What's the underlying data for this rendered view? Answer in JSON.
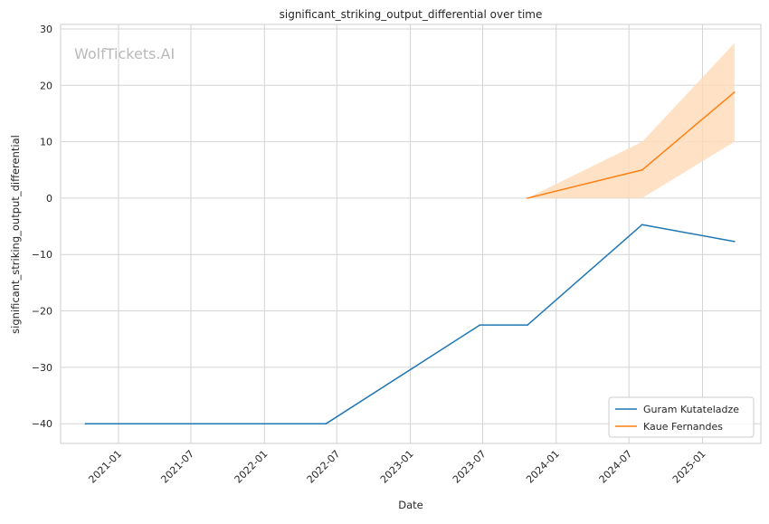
{
  "chart_data": {
    "type": "line",
    "title": "significant_striking_output_differential over time",
    "xlabel": "Date",
    "ylabel": "significant_striking_output_differential",
    "watermark": "WolfTickets.AI",
    "x_ticks": [
      "2021-01",
      "2021-07",
      "2022-01",
      "2022-07",
      "2023-01",
      "2023-07",
      "2024-01",
      "2024-07",
      "2025-01"
    ],
    "y_ticks": [
      30,
      20,
      10,
      0,
      -10,
      -20,
      -30,
      -40
    ],
    "y_tick_labels": [
      "30",
      "20",
      "10",
      "0",
      "−10",
      "−20",
      "−30",
      "−40"
    ],
    "xlim": [
      "2020-08-09",
      "2025-05-27"
    ],
    "ylim": [
      -43.5,
      30.8
    ],
    "grid": true,
    "legend_position": "lower-right",
    "series": [
      {
        "name": "Guram Kutateladze",
        "color": "#1f77b4",
        "x": [
          "2020-10-10",
          "2022-06-04",
          "2023-06-24",
          "2023-10-21",
          "2024-08-03",
          "2025-03-22"
        ],
        "y": [
          -40,
          -40,
          -22.5,
          -22.5,
          -4.7,
          -7.7
        ]
      },
      {
        "name": "Kaue Fernandes",
        "color": "#ff7f0e",
        "x": [
          "2023-10-21",
          "2024-08-03",
          "2025-03-22"
        ],
        "y": [
          0,
          5,
          18.8
        ],
        "band_lower": [
          0,
          0,
          10
        ],
        "band_upper": [
          0,
          10,
          27.5
        ],
        "band_color": "#ffd9b8"
      }
    ]
  }
}
